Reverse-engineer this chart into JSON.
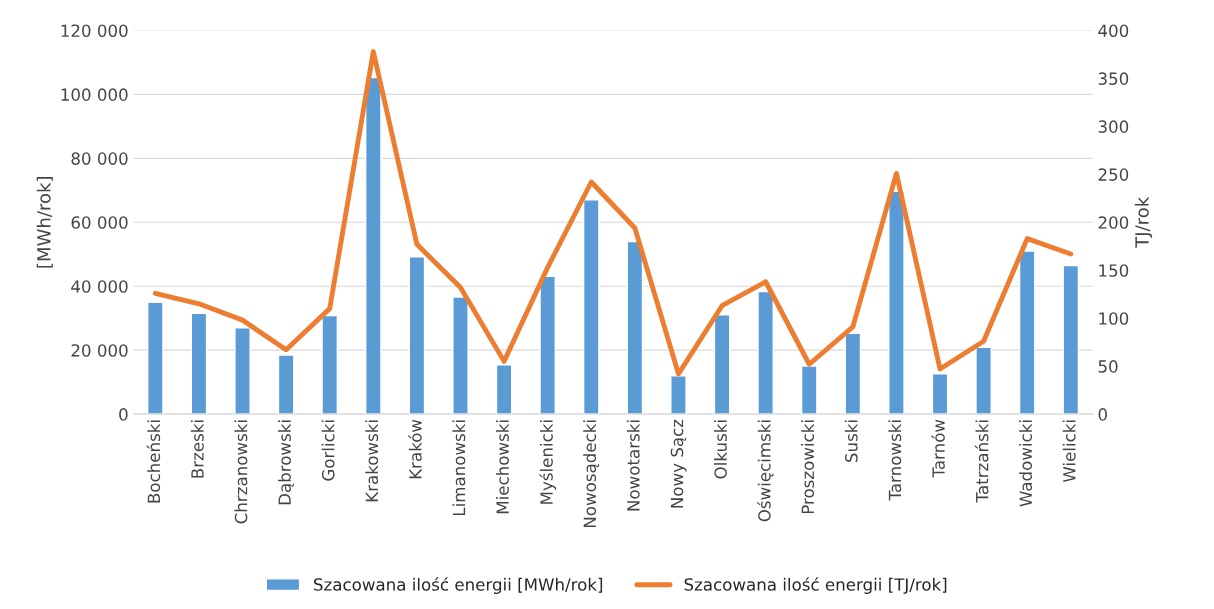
{
  "chart_data": {
    "type": "bar",
    "ylabel": "[MWh/rok]",
    "y2label": "TJ/rok",
    "categories": [
      "Bocheński",
      "Brzeski",
      "Chrzanowski",
      "Dąbrowski",
      "Gorlicki",
      "Krakowski",
      "Kraków",
      "Limanowski",
      "Miechowski",
      "Myślenicki",
      "Nowosądecki",
      "Nowotarski",
      "Nowy Sącz",
      "Olkuski",
      "Oświęcimski",
      "Proszowicki",
      "Suski",
      "Tarnowski",
      "Tarnów",
      "Tatrzański",
      "Wadowicki",
      "Wielicki"
    ],
    "series": [
      {
        "name": "Szacowana ilość energii [MWh/rok]",
        "color": "#5b9bd5",
        "values": [
          35000,
          31500,
          27000,
          18500,
          30800,
          105300,
          49200,
          36600,
          15400,
          43100,
          67000,
          54000,
          12000,
          31100,
          38300,
          15000,
          25300,
          69700,
          12600,
          20900,
          51000,
          46500
        ]
      },
      {
        "name": "Szacowana ilość energii [TJ/rok]",
        "color": "#ed7d31",
        "type": "line",
        "axis": "y2",
        "values": [
          126,
          115,
          98,
          67,
          110,
          378,
          177,
          132,
          55,
          153,
          242,
          194,
          42,
          113,
          138,
          52,
          91,
          251,
          47,
          76,
          183,
          167
        ]
      }
    ],
    "ylim": [
      0,
      120000
    ],
    "yticks": [
      {
        "value": 0,
        "label": "0"
      },
      {
        "value": 20000,
        "label": "20 000"
      },
      {
        "value": 40000,
        "label": "40 000"
      },
      {
        "value": 60000,
        "label": "60 000"
      },
      {
        "value": 80000,
        "label": "80 000"
      },
      {
        "value": 100000,
        "label": "100 000"
      },
      {
        "value": 120000,
        "label": "120 000"
      }
    ],
    "y2lim": [
      0,
      400
    ],
    "y2ticks": [
      0,
      50,
      100,
      150,
      200,
      250,
      300,
      350,
      400
    ],
    "grid": "y",
    "legend": "bottom",
    "marker": "none",
    "line_style": "solid"
  }
}
